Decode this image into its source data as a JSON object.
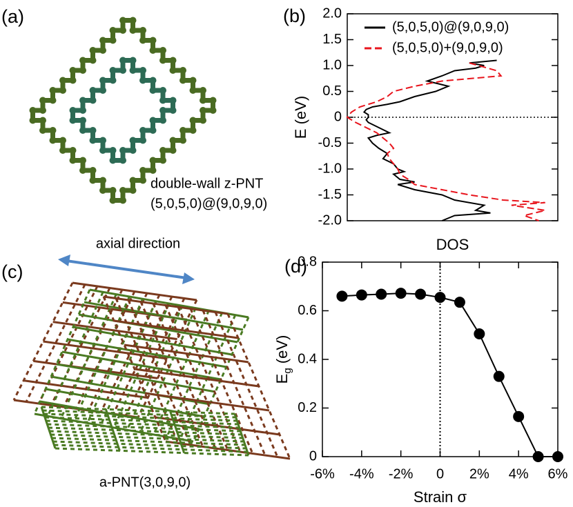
{
  "panels": [
    {
      "label": "(a)",
      "caption": [
        "double-wall z-PNT",
        "(5,0,5,0)@(9,0,9,0)"
      ]
    },
    {
      "label": "(c)",
      "arrow_label": "axial direction",
      "caption": [
        "a-PNT(3,0,9,0)"
      ]
    }
  ],
  "chart_data": [
    {
      "type": "line",
      "panel_label": "(b)",
      "xlabel": "DOS",
      "ylabel": "E (eV)",
      "xlim": [
        0,
        10
      ],
      "ylim": [
        -2,
        2
      ],
      "yticks": [
        {
          "value": -2,
          "label": "-2.0"
        },
        -1.5,
        {
          "value": -1,
          "label": "-1.0"
        },
        -0.5,
        0,
        0.5,
        {
          "value": 1,
          "label": "1.0"
        },
        1.5,
        {
          "value": 2,
          "label": "2.0"
        }
      ],
      "hline": 0,
      "legend": "upper right",
      "series": [
        {
          "name": "(5,0,5,0)@(9,0,9,0)",
          "color": "#000000",
          "dash": "solid",
          "y": [
            1.1,
            1.05,
            1.0,
            0.95,
            0.9,
            0.8,
            0.7,
            0.6,
            0.5,
            0.4,
            0.3,
            0.25,
            0.2,
            0.15,
            0.1,
            0.05,
            0,
            -0.05,
            -0.1,
            -0.2,
            -0.3,
            -0.35,
            -0.4,
            -0.5,
            -0.6,
            -0.7,
            -0.8,
            -0.9,
            -1.0,
            -1.05,
            -1.1,
            -1.2,
            -1.25,
            -1.3,
            -1.4,
            -1.5,
            -1.6,
            -1.7,
            -1.8,
            -1.85,
            -1.9,
            -2.0
          ],
          "x": [
            7.1,
            5.8,
            6.5,
            6.1,
            5.1,
            4.5,
            3.8,
            4.8,
            4.2,
            3.2,
            2.5,
            1.9,
            1.2,
            0.9,
            0.8,
            1.0,
            1.0,
            0.9,
            1.0,
            1.5,
            2.0,
            1.4,
            1.0,
            1.2,
            1.5,
            1.9,
            1.7,
            2.2,
            2.4,
            2.7,
            2.2,
            2.5,
            3.2,
            2.4,
            3.2,
            4.5,
            5.1,
            6.5,
            6.1,
            6.8,
            5.1,
            4.5
          ]
        },
        {
          "name": "(5,0,5,0)+(9,0,9,0)",
          "color": "#e8141c",
          "dash": "dashed",
          "y": [
            1.05,
            0.9,
            0.8,
            0.7,
            0.6,
            0.5,
            0.4,
            0.3,
            0.2,
            0.1,
            0,
            -0.1,
            -0.2,
            -0.3,
            -0.4,
            -0.5,
            -0.6,
            -0.7,
            -0.8,
            -0.9,
            -1.0,
            -1.1,
            -1.2,
            -1.3,
            -1.4,
            -1.5,
            -1.6,
            -1.65,
            -1.7,
            -1.8,
            -1.9,
            -2.0
          ],
          "x": [
            5.8,
            7.1,
            7.3,
            4.5,
            3.2,
            2.2,
            1.9,
            1.4,
            0.6,
            0.2,
            0,
            0.4,
            0.9,
            1.4,
            1.7,
            2.0,
            2.2,
            1.9,
            2.0,
            2.2,
            2.4,
            2.5,
            2.9,
            3.2,
            4.5,
            5.8,
            7.4,
            9.4,
            7.8,
            9.4,
            8.4,
            9.1
          ]
        }
      ]
    },
    {
      "type": "line",
      "panel_label": "(d)",
      "xlabel": "Strain σ",
      "ylabel": [
        "E",
        "g",
        " (eV)"
      ],
      "xlim": [
        -6,
        6
      ],
      "ylim": [
        0,
        0.8
      ],
      "xticks": [
        {
          "value": -6,
          "label": "-6%"
        },
        {
          "value": -4,
          "label": "-4%"
        },
        {
          "value": -2,
          "label": "-2%"
        },
        0,
        {
          "value": 2,
          "label": "2%"
        },
        {
          "value": 4,
          "label": "4%"
        },
        {
          "value": 6,
          "label": "6%"
        }
      ],
      "yticks": [
        0,
        0.2,
        0.4,
        0.6,
        0.8
      ],
      "vline": 0,
      "markers": true,
      "series": [
        {
          "color": "#000000",
          "x": [
            -5,
            -4,
            -3,
            -2,
            -1,
            0,
            1,
            2,
            3,
            4,
            5,
            6
          ],
          "values": [
            0.66,
            0.665,
            0.668,
            0.672,
            0.668,
            0.655,
            0.635,
            0.505,
            0.33,
            0.165,
            0,
            0
          ]
        }
      ]
    }
  ]
}
